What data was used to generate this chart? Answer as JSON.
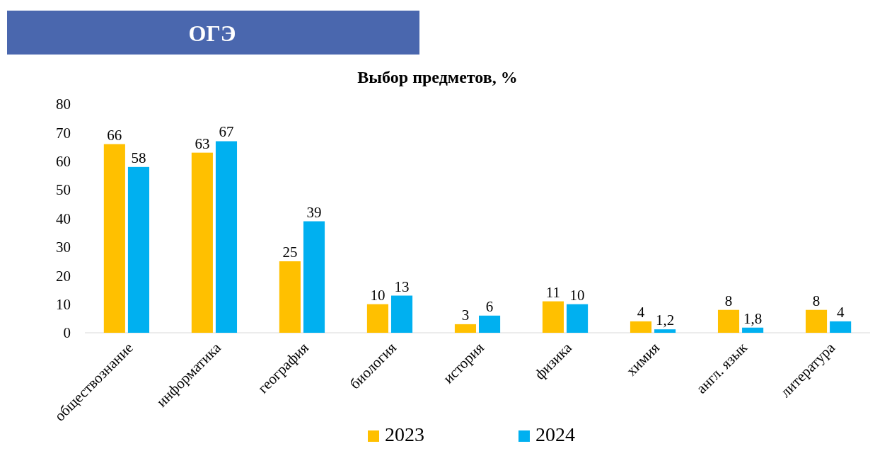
{
  "chart_data": {
    "type": "bar",
    "title": "Выбор предметов, %",
    "annotations": [
      "ОГЭ"
    ],
    "categories": [
      "обществознание",
      "информатика",
      "география",
      "биология",
      "история",
      "физика",
      "химия",
      "англ. язык",
      "литература"
    ],
    "series": [
      {
        "name": "2023",
        "color": "#ffc000",
        "values": [
          66,
          63,
          25,
          10,
          3,
          11,
          4,
          8,
          8
        ],
        "value_labels": [
          "66",
          "63",
          "25",
          "10",
          "3",
          "11",
          "4",
          "8",
          "8"
        ]
      },
      {
        "name": "2024",
        "color": "#00b0f0",
        "values": [
          58,
          67,
          39,
          13,
          6,
          10,
          1.2,
          1.8,
          4
        ],
        "value_labels": [
          "58",
          "67",
          "39",
          "13",
          "6",
          "10",
          "1,2",
          "1,8",
          "4"
        ]
      }
    ],
    "ylim": [
      0,
      80
    ],
    "yticks": [
      0,
      10,
      20,
      30,
      40,
      50,
      60,
      70,
      80
    ],
    "grid": false,
    "legend": "bottom"
  }
}
